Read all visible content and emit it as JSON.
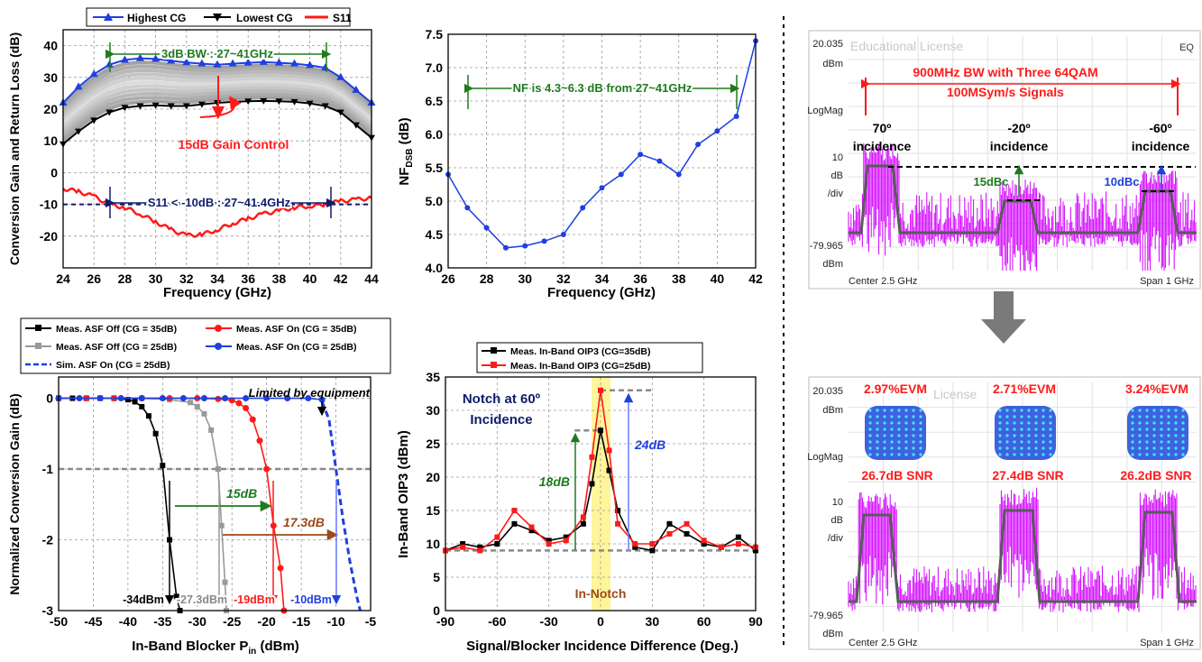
{
  "colors": {
    "blue": "#1f3fe0",
    "black": "#000000",
    "red": "#ff1a1a",
    "green": "#1e7a1e",
    "navy": "#0d1d6b",
    "brown": "#9c4a1a",
    "magenta": "#d100ff",
    "trace": "#5a5a5a",
    "notch_band": "#fff59a"
  },
  "chart_data": [
    {
      "type": "line",
      "xlabel": "Frequency (GHz)",
      "ylabel": "Conversion Gain and Return Loss (dB)",
      "xlim": [
        24,
        44
      ],
      "ylim": [
        -30,
        45
      ],
      "xticks": [
        "24",
        "26",
        "28",
        "30",
        "32",
        "34",
        "36",
        "38",
        "40",
        "42",
        "44"
      ],
      "yticks": [
        "-20",
        "-10",
        "0",
        "10",
        "20",
        "30",
        "40"
      ],
      "grid": true,
      "legend": [
        "Highest CG",
        "Lowest CG",
        "S11"
      ],
      "legend_position": "top",
      "series": [
        {
          "name": "Highest CG",
          "x": [
            24,
            25,
            26,
            27,
            28,
            29,
            30,
            31,
            32,
            33,
            34,
            35,
            36,
            37,
            38,
            39,
            40,
            41,
            42,
            43,
            44
          ],
          "values": [
            22,
            27,
            31,
            34,
            35.5,
            36,
            35.8,
            35.2,
            34.7,
            34.3,
            34,
            34.3,
            34.6,
            34.8,
            34.6,
            34.3,
            33.8,
            33,
            30,
            26,
            22
          ]
        },
        {
          "name": "Lowest CG",
          "x": [
            24,
            25,
            26,
            27,
            28,
            29,
            30,
            31,
            32,
            33,
            34,
            35,
            36,
            37,
            38,
            39,
            40,
            41,
            42,
            43,
            44
          ],
          "values": [
            9,
            13,
            16.5,
            19,
            20.5,
            21,
            21.2,
            21,
            21,
            21.5,
            22,
            22.3,
            22.5,
            22.6,
            22.5,
            22.3,
            21.8,
            21,
            19,
            15,
            11
          ]
        },
        {
          "name": "S11",
          "x": [
            24,
            25,
            26,
            27,
            28,
            29,
            30,
            31,
            32,
            33,
            34,
            35,
            36,
            37,
            38,
            39,
            40,
            41,
            42,
            43,
            44
          ],
          "values": [
            -5,
            -6,
            -7.5,
            -10,
            -11,
            -13,
            -15.5,
            -18,
            -19.8,
            -19.5,
            -18,
            -16,
            -14.5,
            -13,
            -12,
            -11,
            -10.5,
            -10,
            -9,
            -8.5,
            -8
          ]
        }
      ],
      "gain_steps": 12,
      "annotations": [
        "3dB BW : 27~41GHz",
        "15dB Gain Control",
        "S11 < -10dB : 27~41.4GHz"
      ]
    },
    {
      "type": "line",
      "xlabel": "Frequency (GHz)",
      "ylabel": "NF",
      "ylabel_sub": "DSB",
      "ylabel_unit": " (dB)",
      "xlim": [
        26,
        42
      ],
      "ylim": [
        4.0,
        7.5
      ],
      "xticks": [
        "26",
        "28",
        "30",
        "32",
        "34",
        "36",
        "38",
        "40",
        "42"
      ],
      "yticks": [
        "4.0",
        "4.5",
        "5.0",
        "5.5",
        "6.0",
        "6.5",
        "7.0",
        "7.5"
      ],
      "grid": true,
      "series": [
        {
          "x": [
            26,
            27,
            28,
            29,
            30,
            31,
            32,
            33,
            34,
            35,
            36,
            37,
            38,
            39,
            40,
            41,
            42
          ],
          "values": [
            5.4,
            4.9,
            4.6,
            4.3,
            4.33,
            4.4,
            4.5,
            4.9,
            5.2,
            5.4,
            5.7,
            5.6,
            5.4,
            5.85,
            6.05,
            6.27,
            7.4
          ]
        }
      ],
      "annotations": [
        "NF is 4.3~6.3 dB from 27~41GHz"
      ]
    },
    {
      "type": "line",
      "xlabel": "In-Band Blocker P",
      "xlabel_sub": "in",
      "xlabel_unit": " (dBm)",
      "ylabel": "Normalized Conversion Gain (dB)",
      "xlim": [
        -50,
        -5
      ],
      "ylim": [
        -3,
        0.3
      ],
      "xticks": [
        "-50",
        "-45",
        "-40",
        "-35",
        "-30",
        "-25",
        "-20",
        "-15",
        "-10",
        "-5"
      ],
      "yticks": [
        "-3",
        "-2",
        "-1",
        "0"
      ],
      "grid": true,
      "legend": [
        "Meas. ASF Off (CG = 35dB)",
        "Meas. ASF On (CG = 35dB)",
        "Meas. ASF Off (CG = 25dB)",
        "Meas. ASF On (CG = 25dB)",
        "Sim. ASF On (CG = 25dB)"
      ],
      "legend_position": "top",
      "series": [
        {
          "name": "Meas. ASF Off (CG = 35dB)",
          "x": [
            -50,
            -48,
            -46,
            -44,
            -42,
            -40,
            -39,
            -38,
            -37,
            -36,
            -35,
            -34,
            -33,
            -32.5
          ],
          "values": [
            0,
            0,
            0,
            0,
            0,
            -0.02,
            -0.05,
            -0.12,
            -0.25,
            -0.5,
            -0.95,
            -2.0,
            -2.8,
            -3.0
          ]
        },
        {
          "name": "Meas. ASF On (CG = 35dB)",
          "x": [
            -50,
            -46,
            -42,
            -38,
            -34,
            -30,
            -27,
            -25,
            -24,
            -23,
            -22,
            -21,
            -20,
            -19,
            -18,
            -17.5
          ],
          "values": [
            0,
            0,
            0,
            0,
            0,
            0,
            -0.01,
            -0.03,
            -0.07,
            -0.14,
            -0.3,
            -0.6,
            -1.0,
            -1.8,
            -2.4,
            -3.0
          ]
        },
        {
          "name": "Meas. ASF Off (CG = 25dB)",
          "x": [
            -50,
            -46,
            -42,
            -38,
            -34,
            -31,
            -30,
            -29,
            -28,
            -27,
            -26.5,
            -26,
            -25.8
          ],
          "values": [
            0,
            0,
            0,
            0,
            -0.02,
            -0.06,
            -0.12,
            -0.22,
            -0.45,
            -1.0,
            -1.8,
            -2.6,
            -3.0
          ]
        },
        {
          "name": "Meas. ASF On (CG = 25dB)",
          "x": [
            -50,
            -47,
            -44,
            -41,
            -38,
            -35,
            -32,
            -29,
            -26,
            -23,
            -20,
            -17,
            -14,
            -12
          ],
          "values": [
            0,
            0,
            0,
            0,
            0,
            0,
            0,
            0,
            0,
            0,
            0,
            0,
            0,
            -0.02
          ]
        },
        {
          "name": "Sim. ASF On (CG = 25dB)",
          "x": [
            -12,
            -11,
            -10,
            -9,
            -8,
            -7,
            -6.5
          ],
          "values": [
            -0.05,
            -0.3,
            -1.0,
            -1.7,
            -2.3,
            -2.8,
            -3.0
          ]
        }
      ],
      "annotations": [
        "Limited by equipment",
        "15dB",
        "17.3dB",
        "-34dBm",
        "-27.3dBm",
        "-19dBm",
        "-10dBm"
      ]
    },
    {
      "type": "line",
      "xlabel": "Signal/Blocker Incidence Difference (Deg.)",
      "ylabel": "In-Band OIP3 (dBm)",
      "xlim": [
        -90,
        90
      ],
      "ylim": [
        0,
        35
      ],
      "xticks": [
        "-90",
        "-60",
        "-30",
        "0",
        "30",
        "60",
        "90"
      ],
      "yticks": [
        "0",
        "5",
        "10",
        "15",
        "20",
        "25",
        "30",
        "35"
      ],
      "grid": true,
      "legend": [
        "Meas. In-Band OIP3 (CG=35dB)",
        "Meas. In-Band OIP3 (CG=25dB)"
      ],
      "legend_position": "top",
      "series": [
        {
          "name": "Meas. In-Band OIP3 (CG=35dB)",
          "x": [
            -90,
            -80,
            -70,
            -60,
            -50,
            -40,
            -30,
            -20,
            -10,
            -5,
            0,
            5,
            10,
            20,
            30,
            40,
            50,
            60,
            70,
            80,
            90
          ],
          "values": [
            9,
            10,
            9.5,
            10,
            13,
            12,
            10.5,
            11,
            13,
            19,
            27,
            21,
            15,
            9.5,
            9,
            13,
            11.5,
            10,
            9.5,
            11,
            9
          ]
        },
        {
          "name": "Meas. In-Band OIP3 (CG=25dB)",
          "x": [
            -90,
            -80,
            -70,
            -60,
            -50,
            -40,
            -30,
            -20,
            -10,
            -5,
            0,
            5,
            10,
            20,
            30,
            40,
            50,
            60,
            70,
            80,
            90
          ],
          "values": [
            9,
            9.5,
            9,
            11,
            15,
            12.5,
            10,
            10.5,
            14,
            23,
            33,
            24,
            13,
            10,
            10,
            11.5,
            13,
            10.5,
            9.5,
            10,
            9.5
          ]
        }
      ],
      "annotations": [
        "Notch at 60º",
        "Incidence",
        "18dB",
        "24dB",
        "In-Notch"
      ]
    }
  ],
  "spectrum": {
    "top": {
      "license": "Educational License",
      "eq": "EQ",
      "ref_level": "20.035",
      "ref_unit": "dBm",
      "scale_mode": "LogMag",
      "scale_value": "10",
      "scale_unit": "dB",
      "scale_div": "/div",
      "bottom_level": "-79.965",
      "bottom_unit": "dBm",
      "center": "Center 2.5 GHz",
      "span": "Span 1 GHz",
      "title_line1": "900MHz BW with Three 64QAM",
      "title_line2": "100MSym/s Signals",
      "angle1": "70º",
      "angle2": "-20º",
      "angle3": "-60º",
      "incidence": "incidence",
      "dbc1": "15dBc",
      "dbc2": "10dBc"
    },
    "bottom": {
      "license": "License",
      "ref_level": "20.035",
      "ref_unit": "dBm",
      "scale_mode": "LogMag",
      "scale_value": "10",
      "scale_unit": "dB",
      "scale_div": "/div",
      "bottom_level": "-79.965",
      "bottom_unit": "dBm",
      "center": "Center 2.5 GHz",
      "span": "Span 1 GHz",
      "evm": [
        "2.97%EVM",
        "2.71%EVM",
        "3.24%EVM"
      ],
      "snr": [
        "26.7dB SNR",
        "27.4dB SNR",
        "26.2dB SNR"
      ]
    }
  }
}
